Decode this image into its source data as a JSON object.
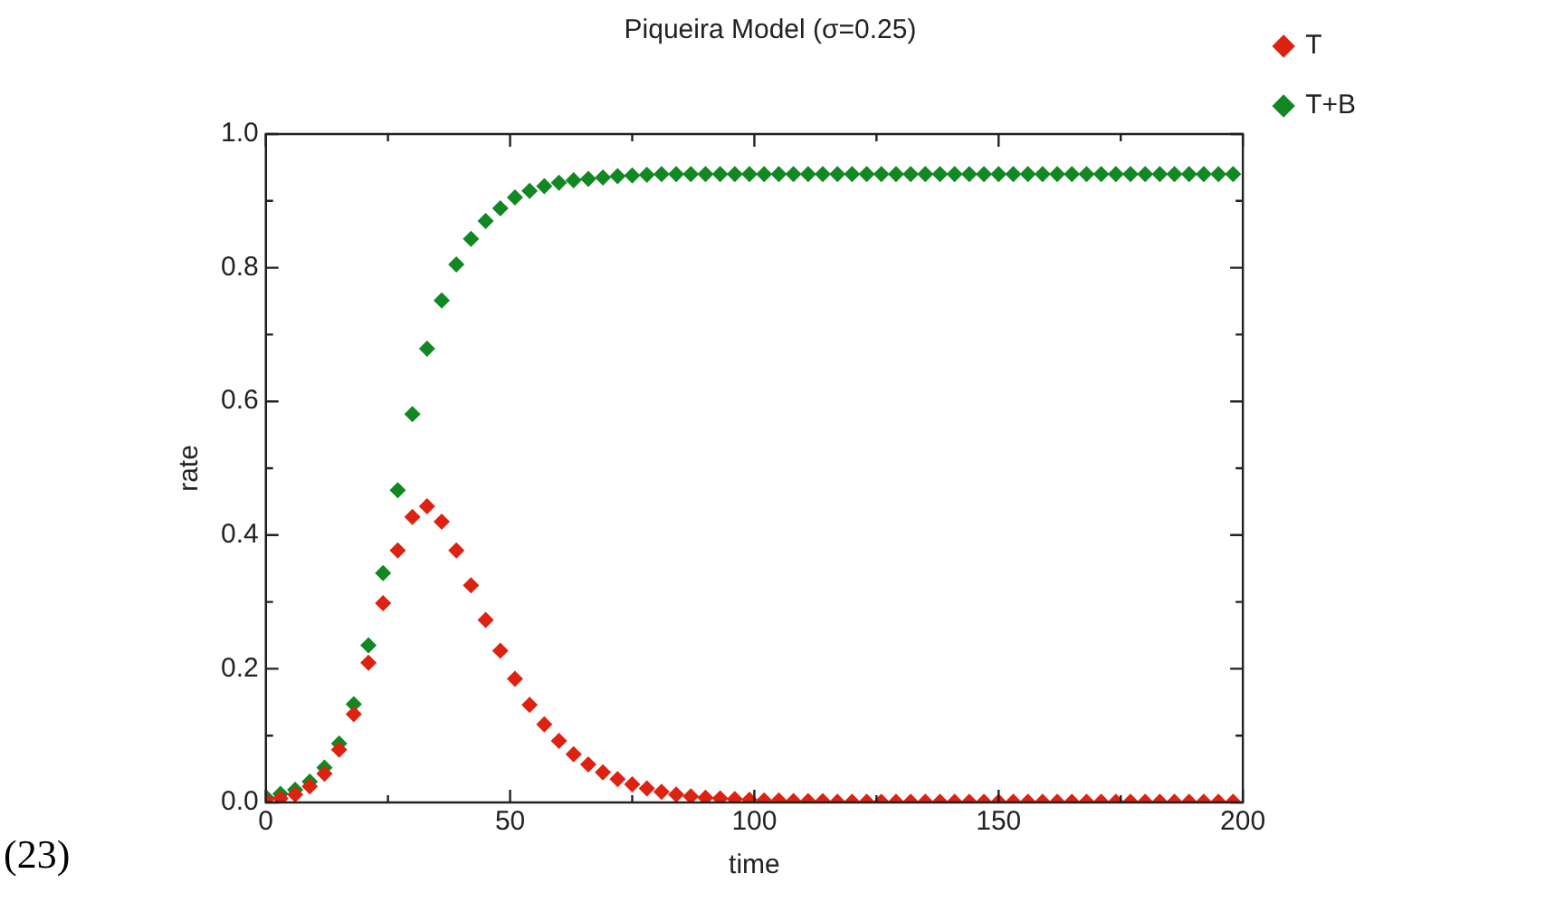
{
  "chart_data": {
    "type": "scatter",
    "title": "Piqueira Model (σ=0.25)",
    "xlabel": "time",
    "ylabel": "rate",
    "annotations": [
      "(23)"
    ],
    "x": [
      0,
      3,
      6,
      9,
      12,
      15,
      18,
      21,
      24,
      27,
      30,
      33,
      36,
      39,
      42,
      45,
      48,
      51,
      54,
      57,
      60,
      63,
      66,
      69,
      72,
      75,
      78,
      81,
      84,
      87,
      90,
      93,
      96,
      99,
      102,
      105,
      108,
      111,
      114,
      117,
      120,
      123,
      126,
      129,
      132,
      135,
      138,
      141,
      144,
      147,
      150,
      153,
      156,
      159,
      162,
      165,
      168,
      171,
      174,
      177,
      180,
      183,
      186,
      189,
      192,
      195,
      198
    ],
    "series": [
      {
        "name": "T",
        "color": "#dd2211",
        "values": [
          0.004,
          0.006,
          0.012,
          0.024,
          0.043,
          0.079,
          0.132,
          0.209,
          0.298,
          0.377,
          0.427,
          0.443,
          0.42,
          0.377,
          0.325,
          0.273,
          0.227,
          0.185,
          0.146,
          0.117,
          0.092,
          0.072,
          0.057,
          0.045,
          0.035,
          0.027,
          0.021,
          0.016,
          0.012,
          0.009,
          0.007,
          0.006,
          0.005,
          0.004,
          0.003,
          0.003,
          0.002,
          0.002,
          0.002,
          0.001,
          0.001,
          0.001,
          0.001,
          0.001,
          0.001,
          0.001,
          0.001,
          0.001,
          0.001,
          0.001,
          0.001,
          0.001,
          0.001,
          0.001,
          0.001,
          0.001,
          0.001,
          0.001,
          0.001,
          0.001,
          0.001,
          0.001,
          0.001,
          0.001,
          0.001,
          0.001,
          0.001
        ]
      },
      {
        "name": "T+B",
        "color": "#118822",
        "values": [
          0.008,
          0.013,
          0.019,
          0.031,
          0.052,
          0.088,
          0.147,
          0.235,
          0.343,
          0.467,
          0.581,
          0.679,
          0.751,
          0.805,
          0.843,
          0.87,
          0.889,
          0.905,
          0.915,
          0.922,
          0.927,
          0.931,
          0.933,
          0.935,
          0.937,
          0.938,
          0.939,
          0.94,
          0.94,
          0.94,
          0.94,
          0.94,
          0.94,
          0.94,
          0.94,
          0.94,
          0.94,
          0.94,
          0.94,
          0.94,
          0.94,
          0.94,
          0.94,
          0.94,
          0.94,
          0.94,
          0.94,
          0.94,
          0.94,
          0.94,
          0.94,
          0.94,
          0.94,
          0.94,
          0.94,
          0.94,
          0.94,
          0.94,
          0.94,
          0.94,
          0.94,
          0.94,
          0.94,
          0.94,
          0.94,
          0.94,
          0.94
        ]
      }
    ],
    "xlim": [
      0,
      200
    ],
    "xticks": [
      0,
      {
        "value": 25,
        "label": null
      },
      50,
      {
        "value": 75,
        "label": null
      },
      100,
      {
        "value": 125,
        "label": null
      },
      150,
      {
        "value": 175,
        "label": null
      },
      200
    ],
    "ylim": [
      0,
      1
    ],
    "yticks": [
      {
        "value": 0,
        "label": "0.0"
      },
      {
        "value": 0.1,
        "label": null
      },
      {
        "value": 0.2,
        "label": "0.2"
      },
      {
        "value": 0.3,
        "label": null
      },
      {
        "value": 0.4,
        "label": "0.4"
      },
      {
        "value": 0.5,
        "label": null
      },
      {
        "value": 0.6,
        "label": "0.6"
      },
      {
        "value": 0.7,
        "label": null
      },
      {
        "value": 0.8,
        "label": "0.8"
      },
      {
        "value": 0.9,
        "label": null
      },
      {
        "value": 1.0,
        "label": "1.0"
      }
    ],
    "legend": "top right",
    "marker": "diamond",
    "grid": false
  }
}
